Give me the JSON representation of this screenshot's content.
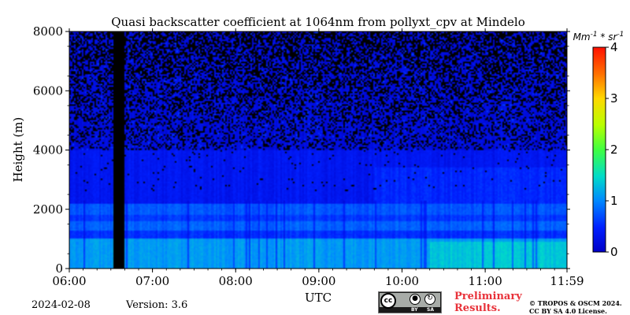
{
  "chart_data": {
    "type": "heatmap",
    "title": "Quasi backscatter coefficient at 1064nm from pollyxt_cpv at Mindelo",
    "xlabel": "UTC",
    "ylabel": "Height (m)",
    "x_ticks": [
      "06:00",
      "07:00",
      "08:00",
      "09:00",
      "10:00",
      "11:00",
      "11:59"
    ],
    "y_ticks": [
      "0",
      "2000",
      "4000",
      "6000",
      "8000"
    ],
    "ylim": [
      0,
      8000
    ],
    "colorbar": {
      "unit_label": "Mm^{-1} * sr^{-1}",
      "range": [
        0,
        4
      ],
      "ticks": [
        "0",
        "1",
        "2",
        "3",
        "4"
      ],
      "colormap": "jet"
    },
    "data_gap": {
      "start": "06:32",
      "end": "06:40"
    },
    "layers": [
      {
        "name": "",
        "height_range": [
          0,
          1000
        ],
        "typical_value": 1.1
      },
      {
        "name": "",
        "height_range": [
          1300,
          1600
        ],
        "typical_value": 0.8
      },
      {
        "name": "",
        "height_range": [
          1800,
          2200
        ],
        "typical_value": 0.75
      },
      {
        "name": "",
        "height_range": [
          2200,
          4000
        ],
        "typical_value": 0.35
      },
      {
        "name": "",
        "height_range": [
          4000,
          8000
        ],
        "typical_value": 0.2
      }
    ]
  },
  "footer": {
    "date": "2024-02-08",
    "version": "Version: 3.6",
    "preliminary_line1": "Preliminary",
    "preliminary_line2": "Results.",
    "copyright_line1": "© TROPOS & OSCM 2024.",
    "copyright_line2": "CC BY SA 4.0 License.",
    "license_badge": {
      "cc": "cc",
      "by": "BY",
      "sa": "SA"
    }
  }
}
